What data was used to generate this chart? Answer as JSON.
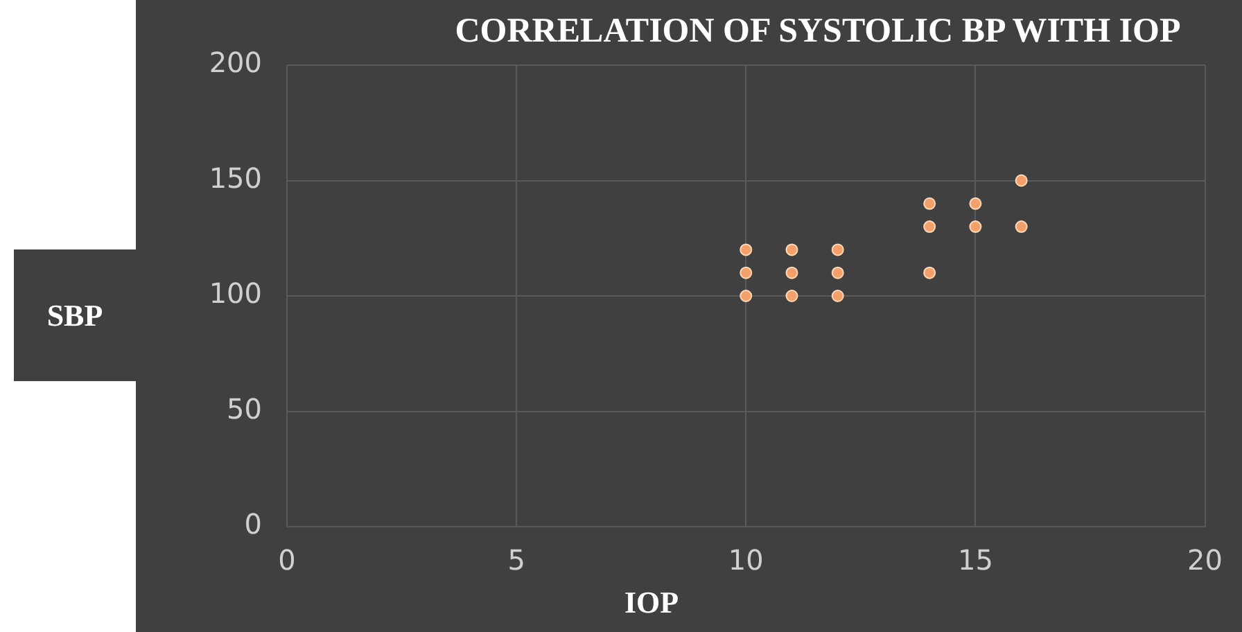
{
  "chart_data": {
    "type": "scatter",
    "title": "CORRELATION OF SYSTOLIC BP WITH IOP",
    "xlabel": "IOP",
    "ylabel": "SBP",
    "series": [
      {
        "color": "#f4a06a",
        "x": [
          10,
          10,
          10,
          11,
          11,
          11,
          12,
          12,
          12,
          14,
          14,
          14,
          15,
          15,
          16,
          16
        ],
        "values": [
          100,
          110,
          120,
          100,
          110,
          120,
          100,
          110,
          120,
          110,
          130,
          140,
          130,
          140,
          130,
          150
        ]
      }
    ],
    "xlim": [
      0,
      20
    ],
    "xticks": [
      0,
      5,
      10,
      15,
      20
    ],
    "ylim": [
      0,
      200
    ],
    "yticks": [
      0,
      50,
      100,
      150,
      200
    ],
    "grid": true,
    "legend": false,
    "marker": "circle"
  }
}
